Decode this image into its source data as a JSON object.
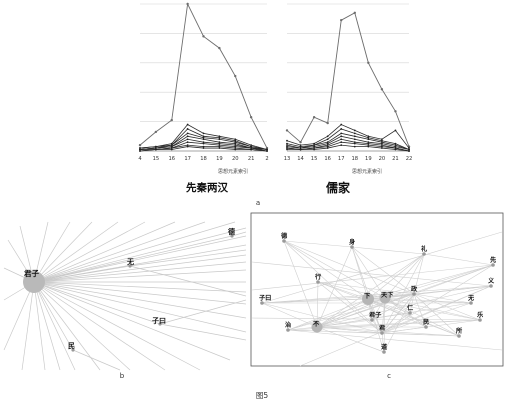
{
  "figure": {
    "caption": "图5",
    "subfigure_labels": {
      "a": "a",
      "b": "b",
      "c": "c"
    }
  },
  "chart_data": [
    {
      "type": "line",
      "title": "先秦两汉",
      "xlabel": "思想元素索引",
      "ylabel": "",
      "categories": [
        "4",
        "15",
        "16",
        "17",
        "18",
        "19",
        "20",
        "21",
        "2"
      ],
      "ylim": [
        0,
        100
      ],
      "grid": true,
      "series": [
        {
          "values": [
            4,
            13,
            21,
            100,
            78,
            70,
            51,
            23,
            2
          ]
        },
        {
          "values": [
            2,
            3,
            5,
            18,
            12,
            10,
            8,
            4,
            1
          ]
        },
        {
          "values": [
            2,
            3,
            4,
            15,
            10,
            9,
            7,
            3,
            1
          ]
        },
        {
          "values": [
            1,
            2,
            4,
            12,
            9,
            8,
            6,
            3,
            1
          ]
        },
        {
          "values": [
            1,
            2,
            3,
            10,
            8,
            6,
            5,
            2,
            1
          ]
        },
        {
          "values": [
            1,
            2,
            3,
            8,
            6,
            5,
            4,
            2,
            1
          ]
        },
        {
          "values": [
            1,
            1,
            2,
            6,
            5,
            4,
            3,
            2,
            0
          ]
        },
        {
          "values": [
            0,
            1,
            2,
            4,
            3,
            3,
            2,
            1,
            0
          ]
        },
        {
          "values": [
            0,
            1,
            1,
            3,
            2,
            2,
            1,
            1,
            0
          ]
        }
      ]
    },
    {
      "type": "line",
      "title": "儒家",
      "xlabel": "思想元素索引",
      "ylabel": "",
      "categories": [
        "13",
        "14",
        "15",
        "16",
        "17",
        "18",
        "19",
        "20",
        "21",
        "22"
      ],
      "ylim": [
        0,
        100
      ],
      "grid": true,
      "series": [
        {
          "values": [
            14,
            6,
            23,
            19,
            89,
            94,
            60,
            42,
            27,
            3
          ]
        },
        {
          "values": [
            7,
            4,
            5,
            10,
            18,
            14,
            10,
            8,
            14,
            2
          ]
        },
        {
          "values": [
            5,
            3,
            4,
            8,
            15,
            12,
            9,
            7,
            5,
            1
          ]
        },
        {
          "values": [
            4,
            2,
            4,
            6,
            12,
            10,
            8,
            6,
            4,
            1
          ]
        },
        {
          "values": [
            3,
            2,
            3,
            5,
            10,
            8,
            6,
            5,
            3,
            1
          ]
        },
        {
          "values": [
            2,
            1,
            2,
            4,
            8,
            6,
            5,
            4,
            2,
            0
          ]
        },
        {
          "values": [
            2,
            1,
            2,
            3,
            6,
            5,
            4,
            3,
            2,
            0
          ]
        },
        {
          "values": [
            1,
            1,
            1,
            2,
            4,
            3,
            3,
            2,
            1,
            0
          ]
        }
      ]
    }
  ],
  "network_b": {
    "nodes": [
      {
        "id": "junzi",
        "label": "君子"
      },
      {
        "id": "wu",
        "label": "无"
      },
      {
        "id": "de",
        "label": "德"
      },
      {
        "id": "ziyue",
        "label": "子曰"
      },
      {
        "id": "min",
        "label": "民"
      }
    ]
  },
  "network_c": {
    "nodes": [
      {
        "id": "de",
        "label": "德"
      },
      {
        "id": "shen",
        "label": "身"
      },
      {
        "id": "li",
        "label": "礼"
      },
      {
        "id": "xian",
        "label": "先"
      },
      {
        "id": "yi",
        "label": "义"
      },
      {
        "id": "xing",
        "label": "行"
      },
      {
        "id": "xia",
        "label": "下"
      },
      {
        "id": "tianxia",
        "label": "天下"
      },
      {
        "id": "zheng",
        "label": "政"
      },
      {
        "id": "wu",
        "label": "无"
      },
      {
        "id": "ziyue",
        "label": "子曰"
      },
      {
        "id": "junzi",
        "label": "君子"
      },
      {
        "id": "ren",
        "label": "仁"
      },
      {
        "id": "le",
        "label": "乐"
      },
      {
        "id": "zhi",
        "label": "治"
      },
      {
        "id": "bu",
        "label": "不"
      },
      {
        "id": "jun",
        "label": "君"
      },
      {
        "id": "min",
        "label": "民"
      },
      {
        "id": "suo",
        "label": "所"
      },
      {
        "id": "dao",
        "label": "道"
      }
    ]
  }
}
